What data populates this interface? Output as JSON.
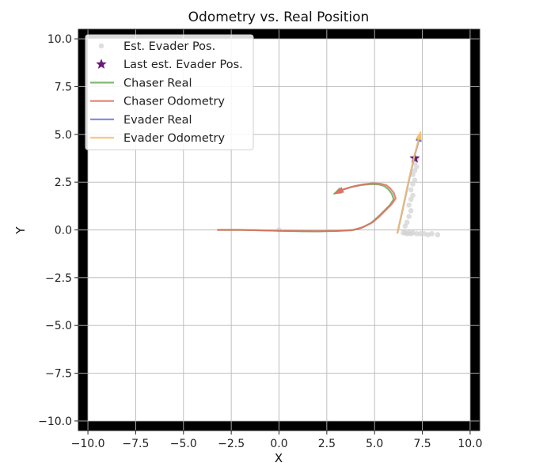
{
  "chart_data": {
    "type": "line",
    "title": "Odometry vs. Real Position",
    "xlabel": "X",
    "ylabel": "Y",
    "xlim": [
      -10.5,
      10.5
    ],
    "ylim": [
      -10.5,
      10.5
    ],
    "grid": true,
    "xticks": [
      -10.0,
      -7.5,
      -5.0,
      -2.5,
      0.0,
      2.5,
      5.0,
      7.5,
      10.0
    ],
    "yticks": [
      -10.0,
      -7.5,
      -5.0,
      -2.5,
      0.0,
      2.5,
      5.0,
      7.5,
      10.0
    ],
    "xtick_labels": [
      "−10.0",
      "−7.5",
      "−5.0",
      "−2.5",
      "0.0",
      "2.5",
      "5.0",
      "7.5",
      "10.0"
    ],
    "ytick_labels": [
      "−10.0",
      "−7.5",
      "−5.0",
      "−2.5",
      "0.0",
      "2.5",
      "5.0",
      "7.5",
      "10.0"
    ],
    "boundary": {
      "x": [
        -10.0,
        10.0
      ],
      "y": [
        -10.0,
        10.0
      ],
      "color": "#000000"
    },
    "legend_position": "top-left",
    "series": [
      {
        "name": "Est. Evader Pos.",
        "kind": "scatter",
        "color": "#d3d3d3",
        "x": [
          6.5,
          6.6,
          6.7,
          6.8,
          6.9,
          7.0,
          7.2,
          7.4,
          7.6,
          7.8,
          8.0,
          8.3,
          6.6,
          6.7,
          6.8,
          6.9,
          6.8,
          6.9,
          7.0,
          6.9,
          7.0,
          7.1,
          7.0,
          7.1,
          7.2,
          7.1,
          7.2,
          0.0
        ],
        "y": [
          -0.15,
          -0.15,
          -0.2,
          -0.15,
          -0.2,
          -0.15,
          -0.2,
          -0.2,
          -0.2,
          -0.25,
          -0.2,
          -0.25,
          0.2,
          0.4,
          0.7,
          1.0,
          1.3,
          1.6,
          1.8,
          2.1,
          2.4,
          2.6,
          2.9,
          3.1,
          3.3,
          3.5,
          3.7,
          0.0
        ]
      },
      {
        "name": "Last est. Evader Pos.",
        "kind": "marker",
        "marker": "star",
        "color": "#6a1b7a",
        "x": [
          7.1
        ],
        "y": [
          3.75
        ]
      },
      {
        "name": "Chaser Real",
        "kind": "line",
        "color": "#6aaa58",
        "x": [
          -3.2,
          -2.0,
          -1.0,
          0.0,
          1.0,
          2.0,
          3.0,
          3.8,
          4.3,
          4.8,
          5.2,
          5.5,
          5.8,
          6.0,
          5.9,
          5.7,
          5.5,
          5.2,
          4.8,
          4.3,
          3.8,
          3.3,
          2.9
        ],
        "y": [
          0.0,
          0.0,
          -0.02,
          -0.05,
          -0.07,
          -0.08,
          -0.06,
          -0.02,
          0.1,
          0.35,
          0.7,
          1.0,
          1.3,
          1.6,
          1.9,
          2.15,
          2.3,
          2.38,
          2.4,
          2.35,
          2.25,
          2.1,
          1.9
        ]
      },
      {
        "name": "Chaser Odometry",
        "kind": "line",
        "color": "#e07060",
        "x": [
          -3.2,
          -2.0,
          -1.0,
          0.0,
          1.0,
          2.0,
          3.0,
          3.9,
          4.4,
          4.9,
          5.3,
          5.6,
          5.9,
          6.1,
          6.0,
          5.8,
          5.6,
          5.3,
          4.9,
          4.4,
          3.9,
          3.4,
          3.0
        ],
        "y": [
          0.0,
          0.0,
          -0.02,
          -0.04,
          -0.06,
          -0.07,
          -0.05,
          0.0,
          0.15,
          0.4,
          0.75,
          1.05,
          1.35,
          1.65,
          1.95,
          2.2,
          2.35,
          2.42,
          2.44,
          2.38,
          2.28,
          2.13,
          1.95
        ]
      },
      {
        "name": "Evader Real",
        "kind": "line",
        "color": "#6f6fe0",
        "x": [
          6.2,
          6.5,
          6.8,
          7.1,
          7.4
        ],
        "y": [
          -0.15,
          1.2,
          2.6,
          3.9,
          5.0
        ]
      },
      {
        "name": "Evader Odometry",
        "kind": "line",
        "color": "#f3c36a",
        "x": [
          6.2,
          6.5,
          6.8,
          7.1,
          7.4
        ],
        "y": [
          -0.15,
          1.25,
          2.65,
          3.95,
          5.1
        ]
      }
    ]
  }
}
